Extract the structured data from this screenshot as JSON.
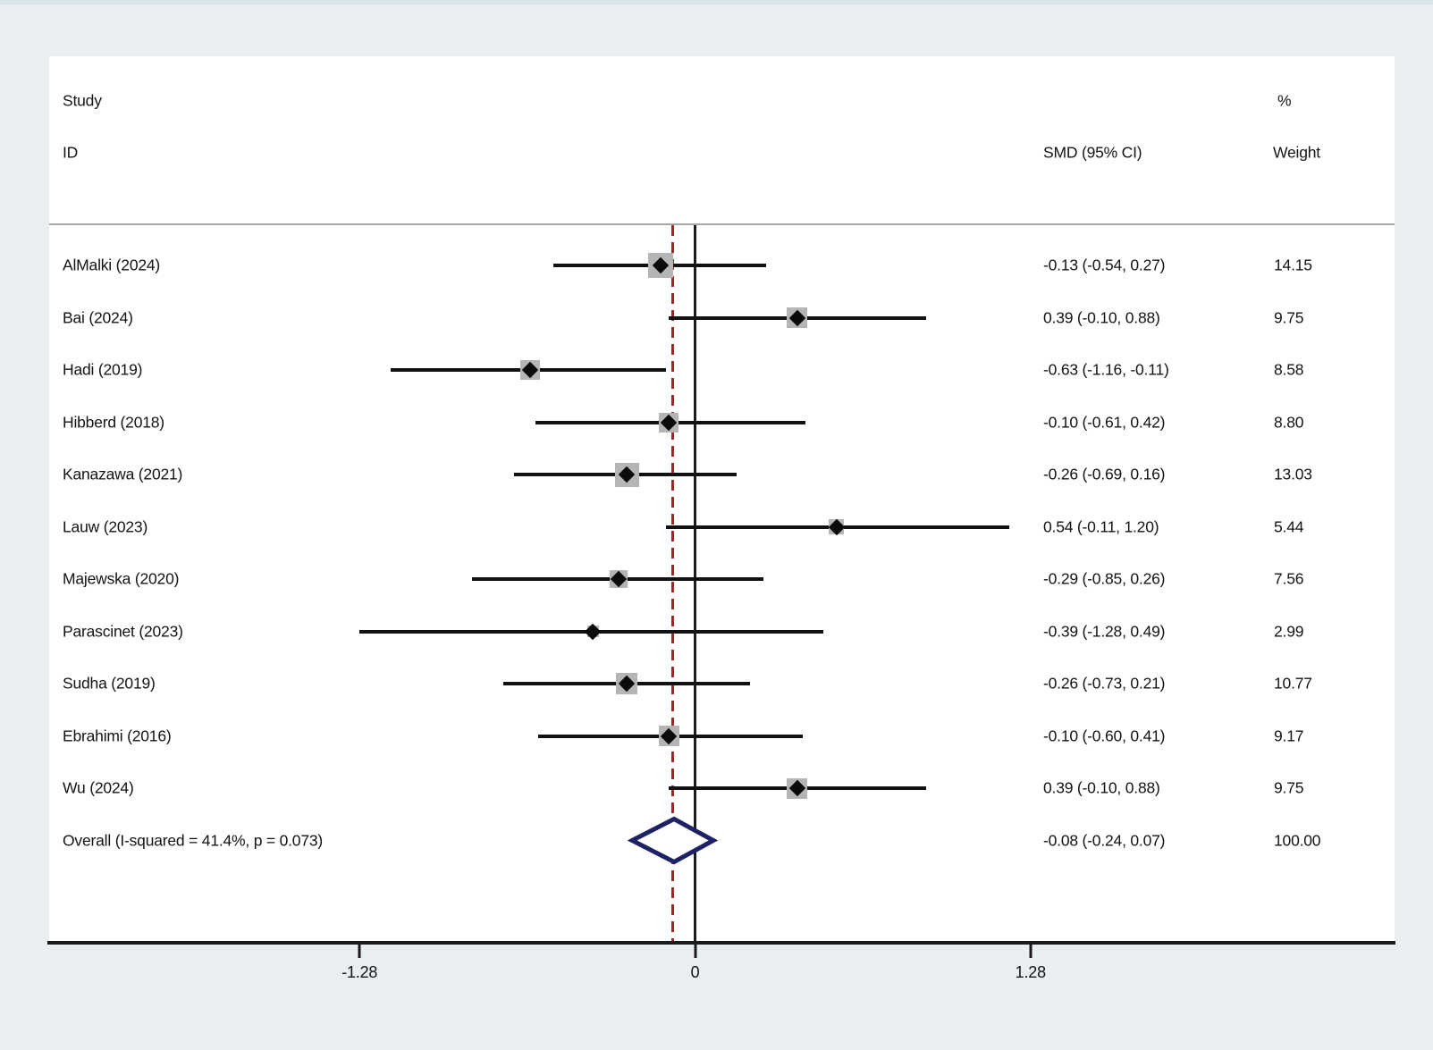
{
  "header": {
    "col_study_line1": "Study",
    "col_study_line2": "ID",
    "col_smd": "SMD (95% CI)",
    "col_weight_line1": "%",
    "col_weight_line2": "Weight"
  },
  "chart_data": {
    "type": "forest",
    "effect_measure": "SMD",
    "x_axis": {
      "ticks": [
        {
          "value": -1.28,
          "label": "-1.28"
        },
        {
          "value": 0,
          "label": "0"
        },
        {
          "value": 1.28,
          "label": "1.28"
        }
      ],
      "zero_line_at": 0,
      "dashed_reference_at": -0.08
    },
    "studies": [
      {
        "id": "AlMalki (2024)",
        "est": -0.13,
        "lo": -0.54,
        "hi": 0.27,
        "ci_label": "-0.13 (-0.54, 0.27)",
        "weight": 14.15,
        "weight_label": "14.15"
      },
      {
        "id": "Bai (2024)",
        "est": 0.39,
        "lo": -0.1,
        "hi": 0.88,
        "ci_label": "0.39 (-0.10, 0.88)",
        "weight": 9.75,
        "weight_label": "9.75"
      },
      {
        "id": "Hadi (2019)",
        "est": -0.63,
        "lo": -1.16,
        "hi": -0.11,
        "ci_label": "-0.63 (-1.16, -0.11)",
        "weight": 8.58,
        "weight_label": "8.58"
      },
      {
        "id": "Hibberd (2018)",
        "est": -0.1,
        "lo": -0.61,
        "hi": 0.42,
        "ci_label": "-0.10 (-0.61, 0.42)",
        "weight": 8.8,
        "weight_label": "8.80"
      },
      {
        "id": "Kanazawa (2021)",
        "est": -0.26,
        "lo": -0.69,
        "hi": 0.16,
        "ci_label": "-0.26 (-0.69, 0.16)",
        "weight": 13.03,
        "weight_label": "13.03"
      },
      {
        "id": "Lauw (2023)",
        "est": 0.54,
        "lo": -0.11,
        "hi": 1.2,
        "ci_label": "0.54 (-0.11, 1.20)",
        "weight": 5.44,
        "weight_label": "5.44"
      },
      {
        "id": "Majewska (2020)",
        "est": -0.29,
        "lo": -0.85,
        "hi": 0.26,
        "ci_label": "-0.29 (-0.85, 0.26)",
        "weight": 7.56,
        "weight_label": "7.56"
      },
      {
        "id": "Parascinet (2023)",
        "est": -0.39,
        "lo": -1.28,
        "hi": 0.49,
        "ci_label": "-0.39 (-1.28, 0.49)",
        "weight": 2.99,
        "weight_label": "2.99"
      },
      {
        "id": "Sudha (2019)",
        "est": -0.26,
        "lo": -0.73,
        "hi": 0.21,
        "ci_label": "-0.26 (-0.73, 0.21)",
        "weight": 10.77,
        "weight_label": "10.77"
      },
      {
        "id": "Ebrahimi (2016)",
        "est": -0.1,
        "lo": -0.6,
        "hi": 0.41,
        "ci_label": "-0.10 (-0.60, 0.41)",
        "weight": 9.17,
        "weight_label": "9.17"
      },
      {
        "id": "Wu (2024)",
        "est": 0.39,
        "lo": -0.1,
        "hi": 0.88,
        "ci_label": "0.39 (-0.10, 0.88)",
        "weight": 9.75,
        "weight_label": "9.75"
      }
    ],
    "overall": {
      "id": "Overall  (I-squared = 41.4%, p = 0.073)",
      "est": -0.08,
      "lo": -0.24,
      "hi": 0.07,
      "ci_label": "-0.08 (-0.24, 0.07)",
      "weight_label": "100.00",
      "i_squared": "41.4%",
      "p_value": "0.073"
    }
  },
  "colors": {
    "background": "#e9eef1",
    "panel": "#ffffff",
    "ci_black": "#111111",
    "weight_box_gray": "#b5b5b5",
    "reference_dash_red": "#a42523",
    "overall_diamond_navy": "#1c2263"
  }
}
